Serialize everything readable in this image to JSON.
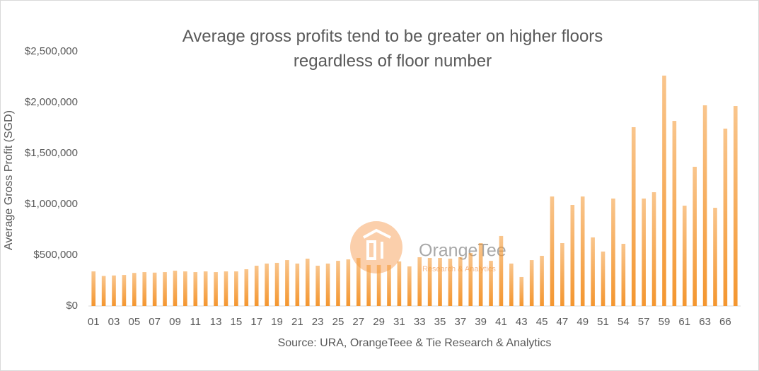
{
  "chart_data": {
    "type": "bar",
    "title": "Average gross profits tend to be greater on higher floors regardless of floor number",
    "y_label": "Average Gross Profit (SGD)",
    "x_label": "Source: URA, OrangeTeee & Tie Research & Analytics",
    "watermark": {
      "name": "OrangeTee",
      "tagline": "Research & Analytics"
    },
    "categories": [
      "01",
      null,
      "03",
      null,
      "05",
      null,
      "07",
      null,
      "09",
      null,
      "11",
      null,
      "13",
      null,
      "15",
      null,
      "17",
      null,
      "19",
      null,
      "21",
      null,
      "23",
      null,
      "25",
      null,
      "27",
      null,
      "29",
      null,
      "31",
      null,
      "33",
      null,
      "35",
      null,
      "37",
      null,
      "39",
      null,
      "41",
      null,
      "43",
      null,
      "45",
      null,
      "47",
      null,
      "49",
      null,
      "51",
      null,
      "54",
      null,
      "57",
      null,
      "59",
      null,
      "61",
      null,
      "63",
      null,
      "66",
      null
    ],
    "values": [
      340000,
      295000,
      300000,
      305000,
      325000,
      333000,
      328000,
      333000,
      347000,
      340000,
      333000,
      340000,
      333000,
      340000,
      340000,
      361000,
      396000,
      417000,
      424000,
      451000,
      417000,
      465000,
      396000,
      417000,
      444000,
      458000,
      472000,
      403000,
      403000,
      403000,
      438000,
      389000,
      479000,
      472000,
      472000,
      465000,
      479000,
      521000,
      618000,
      444000,
      688000,
      417000,
      285000,
      451000,
      493000,
      1076000,
      618000,
      993000,
      1076000,
      674000,
      535000,
      1056000,
      611000,
      1757000,
      1056000,
      1118000,
      2264000,
      1819000,
      986000,
      1368000,
      1972000,
      965000,
      1743000,
      1965000
    ],
    "color": "#f4962f",
    "ylim": [
      0,
      2500000
    ],
    "yticks": [
      {
        "value": 0,
        "label": "$0"
      },
      {
        "value": 500000,
        "label": "$500,000"
      },
      {
        "value": 1000000,
        "label": "$1,000,000"
      },
      {
        "value": 1500000,
        "label": "$1,500,000"
      },
      {
        "value": 2000000,
        "label": "$2,000,000"
      },
      {
        "value": 2500000,
        "label": "$2,500,000"
      }
    ],
    "grid": false
  }
}
